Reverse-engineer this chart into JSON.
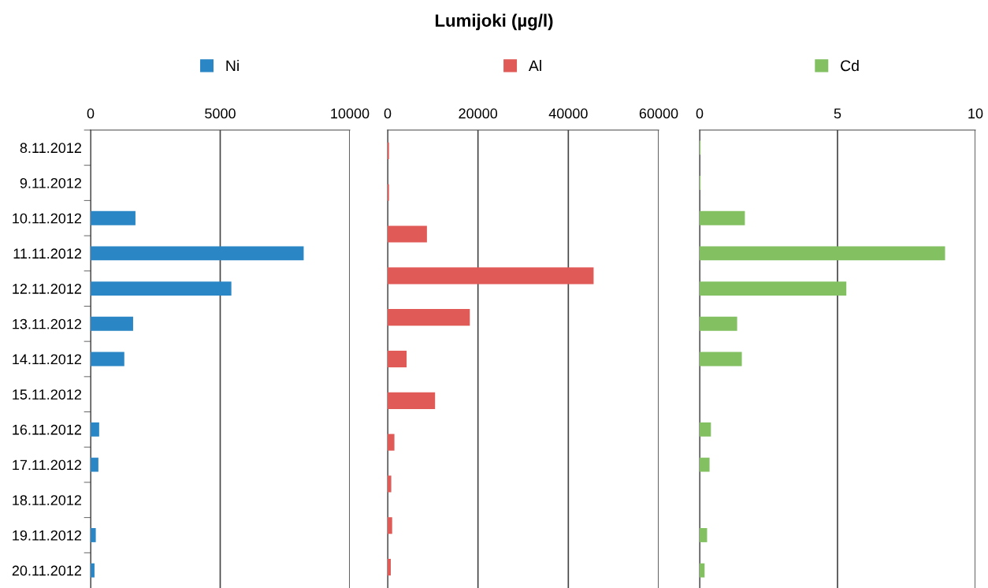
{
  "chart_data": [
    {
      "type": "bar",
      "orientation": "horizontal",
      "categories": [
        "8.11.2012",
        "9.11.2012",
        "10.11.2012",
        "11.11.2012",
        "12.11.2012",
        "13.11.2012",
        "14.11.2012",
        "15.11.2012",
        "16.11.2012",
        "17.11.2012",
        "18.11.2012",
        "19.11.2012",
        "20.11.2012"
      ],
      "series": [
        {
          "name": "Ni",
          "color": "#2a86c4",
          "values": [
            null,
            null,
            1730,
            8220,
            5430,
            1640,
            1300,
            null,
            330,
            300,
            null,
            200,
            150
          ]
        }
      ],
      "xlim": [
        0,
        10000
      ],
      "xticks": [
        0,
        5000,
        10000
      ],
      "grid": "x",
      "legend": "top"
    },
    {
      "type": "bar",
      "orientation": "horizontal",
      "title": "Lumijoki (µg/l)",
      "categories": [
        null,
        null,
        null,
        null,
        null,
        null,
        null,
        null,
        null,
        null,
        null
      ],
      "series": [
        {
          "name": "Al",
          "color": "#e05a57",
          "values": [
            300,
            300,
            8700,
            45600,
            18200,
            4200,
            10500,
            1500,
            800,
            1000,
            700
          ]
        }
      ],
      "xlim": [
        0,
        60000
      ],
      "xticks": [
        0,
        20000,
        40000,
        60000
      ],
      "grid": "x",
      "legend": "top"
    },
    {
      "type": "bar",
      "orientation": "horizontal",
      "categories": [
        null,
        null,
        null,
        null,
        null,
        null,
        null,
        null,
        null,
        null,
        null,
        null,
        null
      ],
      "series": [
        {
          "name": "Cd",
          "color": "#82c062",
          "values": [
            0.03,
            0.03,
            1.64,
            8.9,
            5.32,
            1.36,
            1.53,
            null,
            0.41,
            0.36,
            null,
            0.27,
            0.18
          ]
        }
      ],
      "xlim": [
        0,
        10
      ],
      "xticks": [
        0,
        5,
        10
      ],
      "grid": "x",
      "legend": "top"
    }
  ]
}
